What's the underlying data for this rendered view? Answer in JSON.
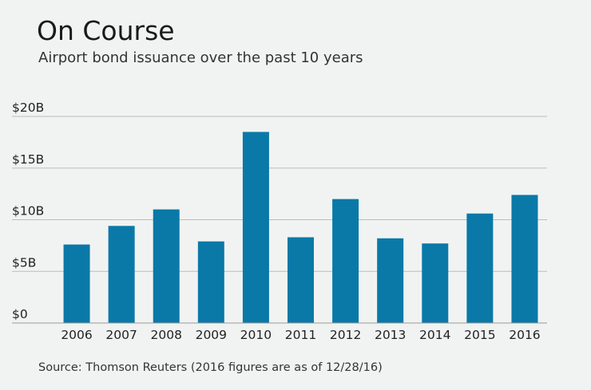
{
  "chart_data": {
    "type": "bar",
    "title": "On Course",
    "subtitle": "Airport bond issuance over the past 10 years",
    "source": "Source: Thomson Reuters (2016 figures are as of 12/28/16)",
    "categories": [
      "2006",
      "2007",
      "2008",
      "2009",
      "2010",
      "2011",
      "2012",
      "2013",
      "2014",
      "2015",
      "2016"
    ],
    "values": [
      7.6,
      9.4,
      11.0,
      7.9,
      18.5,
      8.3,
      12.0,
      8.2,
      7.7,
      10.6,
      12.4
    ],
    "ylim": [
      0,
      20
    ],
    "yticks": [
      {
        "value": 0,
        "label": "$0"
      },
      {
        "value": 5,
        "label": "$5B"
      },
      {
        "value": 10,
        "label": "$10B"
      },
      {
        "value": 15,
        "label": "$15B"
      },
      {
        "value": 20,
        "label": "$20B"
      }
    ],
    "grid": true,
    "colors": {
      "bar": "#0a79a8",
      "grid": "#bcbcbc",
      "baseline": "#999999",
      "background": "#f1f3f2"
    }
  }
}
